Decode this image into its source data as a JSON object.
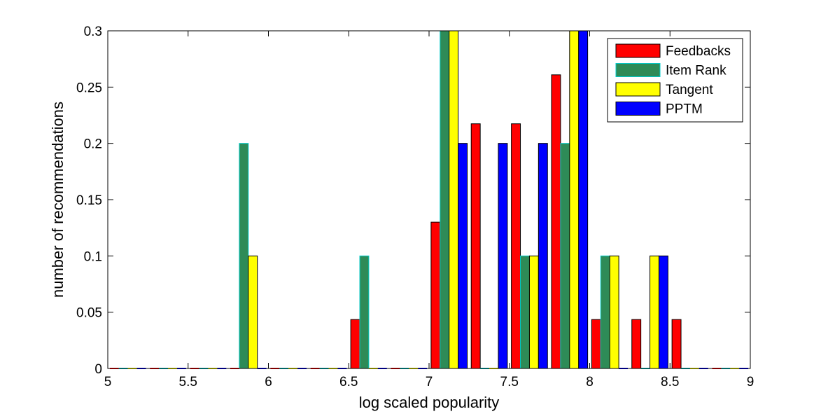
{
  "chart_data": {
    "type": "bar",
    "xlabel": "log scaled popularity",
    "ylabel": "number of recommendations",
    "xlim": [
      5,
      9
    ],
    "ylim": [
      0,
      0.3
    ],
    "xticks": [
      "5",
      "5.5",
      "6",
      "6.5",
      "7",
      "7.5",
      "8",
      "8.5",
      "9"
    ],
    "yticks": [
      "0",
      "0.05",
      "0.1",
      "0.15",
      "0.2",
      "0.25",
      "0.3"
    ],
    "bin_centers": [
      5.125,
      5.375,
      5.625,
      5.875,
      6.125,
      6.375,
      6.625,
      6.875,
      7.125,
      7.375,
      7.625,
      7.875,
      8.125,
      8.375,
      8.625,
      8.875
    ],
    "legend_position": "top-right",
    "series": [
      {
        "name": "Feedbacks",
        "color": "#ff0000",
        "values": [
          0,
          0,
          0,
          0,
          0,
          0,
          0.0435,
          0,
          0.13,
          0.2174,
          0.2174,
          0.2609,
          0.0435,
          0.0435,
          0.0435,
          0
        ]
      },
      {
        "name": "Item Rank",
        "color": "#2e8b57",
        "edge": "#00cccc",
        "values": [
          0,
          0,
          0,
          0.2,
          0,
          0,
          0.1,
          0,
          0.3,
          0,
          0.1,
          0.2,
          0.1,
          0,
          0,
          0
        ]
      },
      {
        "name": "Tangent",
        "color": "#ffff00",
        "values": [
          0,
          0,
          0,
          0.1,
          0,
          0,
          0,
          0,
          0.3,
          0,
          0.1,
          0.3,
          0.1,
          0.1,
          0,
          0
        ]
      },
      {
        "name": "PPTM",
        "color": "#0000ff",
        "values": [
          0,
          0,
          0,
          0,
          0,
          0,
          0,
          0,
          0.2,
          0.2,
          0.2,
          0.3,
          0,
          0.1,
          0,
          0
        ]
      }
    ]
  }
}
